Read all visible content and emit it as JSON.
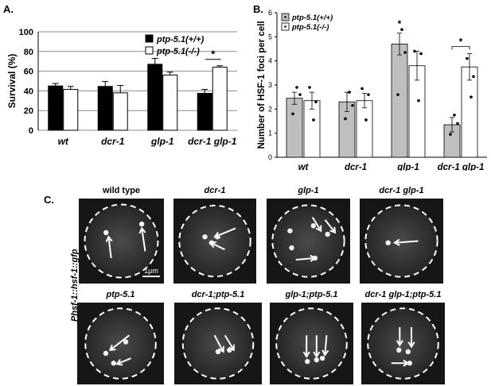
{
  "panel_labels": {
    "a": "A.",
    "b": "B.",
    "c": "C."
  },
  "chart_data": [
    {
      "type": "bar",
      "panel": "A.",
      "title": "",
      "xlabel": "",
      "ylabel": "Survival (%)",
      "ylim": [
        0,
        100
      ],
      "yticks": [
        "0",
        "20",
        "40",
        "60",
        "80",
        "100"
      ],
      "grid": true,
      "legend_placement": "top-right",
      "categories": [
        "wt",
        "dcr-1",
        "glp-1",
        "dcr-1 glp-1"
      ],
      "series": [
        {
          "name": "ptp-5.1(+/+)",
          "color": "#000000",
          "values": [
            45,
            44.5,
            67,
            37.5
          ],
          "errors": [
            2.5,
            5,
            6,
            4
          ]
        },
        {
          "name": "ptp-5.1(-/-)",
          "color": "#ffffff",
          "values": [
            41.5,
            38,
            56,
            64
          ],
          "errors": [
            3,
            7.5,
            3,
            1.5
          ]
        }
      ],
      "annotations": [
        {
          "text": "*",
          "category": "dcr-1 glp-1"
        }
      ]
    },
    {
      "type": "bar",
      "panel": "B.",
      "title": "",
      "xlabel": "",
      "ylabel": "Number of HSF-1 foci per cell",
      "ylim": [
        0,
        6
      ],
      "yticks": [
        "0",
        "1",
        "2",
        "3",
        "4",
        "5",
        "6"
      ],
      "grid": false,
      "legend_placement": "top-left",
      "categories": [
        "wt",
        "dcr-1",
        "glp-1",
        "dcr-1 glp-1"
      ],
      "series": [
        {
          "name": "ptp-5.1(+/+)",
          "color": "#bfbfbf",
          "values": [
            2.45,
            2.3,
            4.7,
            1.35
          ],
          "errors": [
            0.25,
            0.4,
            0.45,
            0.3
          ],
          "points": [
            [
              2.9,
              2.6,
              1.8
            ],
            [
              2.7,
              2.15,
              1.6
            ],
            [
              5.3,
              4.35,
              2.6
            ],
            [
              1.75,
              1.4,
              0.95
            ]
          ]
        },
        {
          "name": "ptp-5.1(-/-)",
          "color": "#ffffff",
          "values": [
            2.35,
            2.35,
            3.8,
            3.75
          ],
          "errors": [
            0.35,
            0.3,
            0.6,
            0.55
          ],
          "points": [
            [
              2.9,
              2.3,
              1.55
            ],
            [
              2.85,
              2.6,
              1.55
            ],
            [
              4.4,
              4.3,
              2.35
            ],
            [
              4.1,
              3.35,
              2.5
            ]
          ]
        }
      ],
      "annotations": [
        {
          "text": "*",
          "category": "glp-1"
        },
        {
          "text": "*",
          "category": "dcr-1 glp-1"
        }
      ]
    }
  ],
  "micrographs": {
    "ylabel": "Phsf-1::hsf-1::gfp",
    "scale_bar": "1μm",
    "images": [
      {
        "title": "wild type",
        "foci": 2,
        "arrows": 2
      },
      {
        "title": "dcr-1",
        "foci": 3,
        "arrows": 2
      },
      {
        "title": "glp-1",
        "foci": 5,
        "arrows": 3
      },
      {
        "title": "dcr-1 glp-1",
        "foci": 1,
        "arrows": 1
      },
      {
        "title": "ptp-5.1",
        "foci": 3,
        "arrows": 2
      },
      {
        "title": "dcr-1;ptp-5.1",
        "foci": 2,
        "arrows": 2
      },
      {
        "title": "glp-1;ptp-5.1",
        "foci": 3,
        "arrows": 3
      },
      {
        "title": "dcr-1 glp-1;ptp-5.1",
        "foci": 3,
        "arrows": 3
      }
    ]
  }
}
